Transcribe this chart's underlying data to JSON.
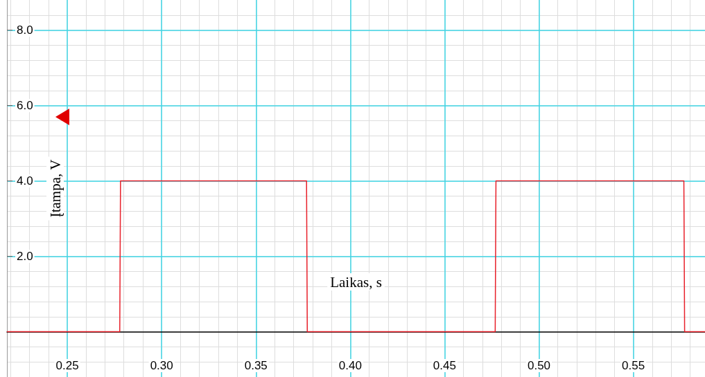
{
  "chart_data": {
    "type": "line",
    "xlabel": "Laikas, s",
    "ylabel": "Įtampa, V",
    "x": [
      0.218,
      0.2778,
      0.2782,
      0.3768,
      0.3772,
      0.4768,
      0.4772,
      0.5768,
      0.5772,
      0.588
    ],
    "series": [
      {
        "color": "#e8202a",
        "values": [
          0,
          0,
          4,
          4,
          0,
          0,
          4,
          4,
          0,
          0
        ]
      }
    ],
    "xlim": [
      0.218,
      0.588
    ],
    "xticks": [
      {
        "value": 0.25,
        "label": "0.25"
      },
      {
        "value": 0.3,
        "label": "0.30"
      },
      {
        "value": 0.35,
        "label": "0.35"
      },
      {
        "value": 0.4,
        "label": "0.40"
      },
      {
        "value": 0.45,
        "label": "0.45"
      },
      {
        "value": 0.5,
        "label": "0.50"
      },
      {
        "value": 0.55,
        "label": "0.55"
      }
    ],
    "ylim": [
      -1.2,
      8.8
    ],
    "yticks": [
      {
        "value": 2,
        "label": "2.0"
      },
      {
        "value": 4,
        "label": "4.0"
      },
      {
        "value": 6,
        "label": "6.0"
      },
      {
        "value": 8,
        "label": "8.0"
      }
    ],
    "grid": true,
    "marker": "none",
    "line_style": "solid"
  }
}
